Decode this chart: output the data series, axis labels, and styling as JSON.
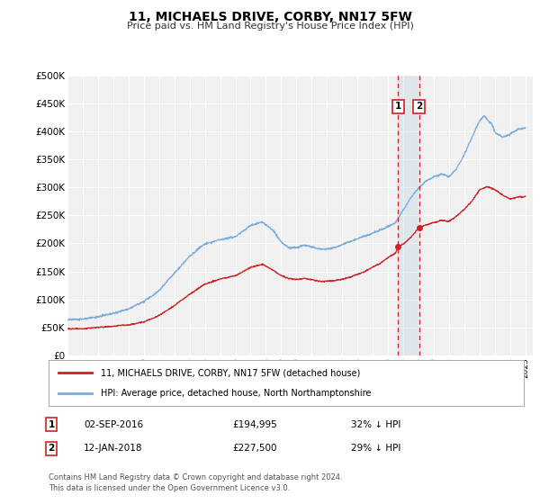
{
  "title": "11, MICHAELS DRIVE, CORBY, NN17 5FW",
  "subtitle": "Price paid vs. HM Land Registry's House Price Index (HPI)",
  "legend_line1": "11, MICHAELS DRIVE, CORBY, NN17 5FW (detached house)",
  "legend_line2": "HPI: Average price, detached house, North Northamptonshire",
  "transaction1_date": "02-SEP-2016",
  "transaction1_price": "£194,995",
  "transaction1_hpi": "32% ↓ HPI",
  "transaction1_x": 2016.67,
  "transaction1_y": 194995,
  "transaction2_date": "12-JAN-2018",
  "transaction2_price": "£227,500",
  "transaction2_hpi": "29% ↓ HPI",
  "transaction2_x": 2018.04,
  "transaction2_y": 227500,
  "vline1_x": 2016.67,
  "vline2_x": 2018.04,
  "hpi_color": "#7aaddb",
  "price_color": "#cc2222",
  "point_color": "#cc2222",
  "vline_color": "#cc2222",
  "background_color": "#ffffff",
  "plot_bg_color": "#f0f0f0",
  "grid_color": "#ffffff",
  "ylim": [
    0,
    500000
  ],
  "xlim_start": 1995.0,
  "xlim_end": 2025.5,
  "yticks": [
    0,
    50000,
    100000,
    150000,
    200000,
    250000,
    300000,
    350000,
    400000,
    450000,
    500000
  ],
  "ytick_labels": [
    "£0",
    "£50K",
    "£100K",
    "£150K",
    "£200K",
    "£250K",
    "£300K",
    "£350K",
    "£400K",
    "£450K",
    "£500K"
  ],
  "footer": "Contains HM Land Registry data © Crown copyright and database right 2024.\nThis data is licensed under the Open Government Licence v3.0.",
  "shaded_region_alpha": 0.15,
  "shaded_color": "#7aaddb"
}
